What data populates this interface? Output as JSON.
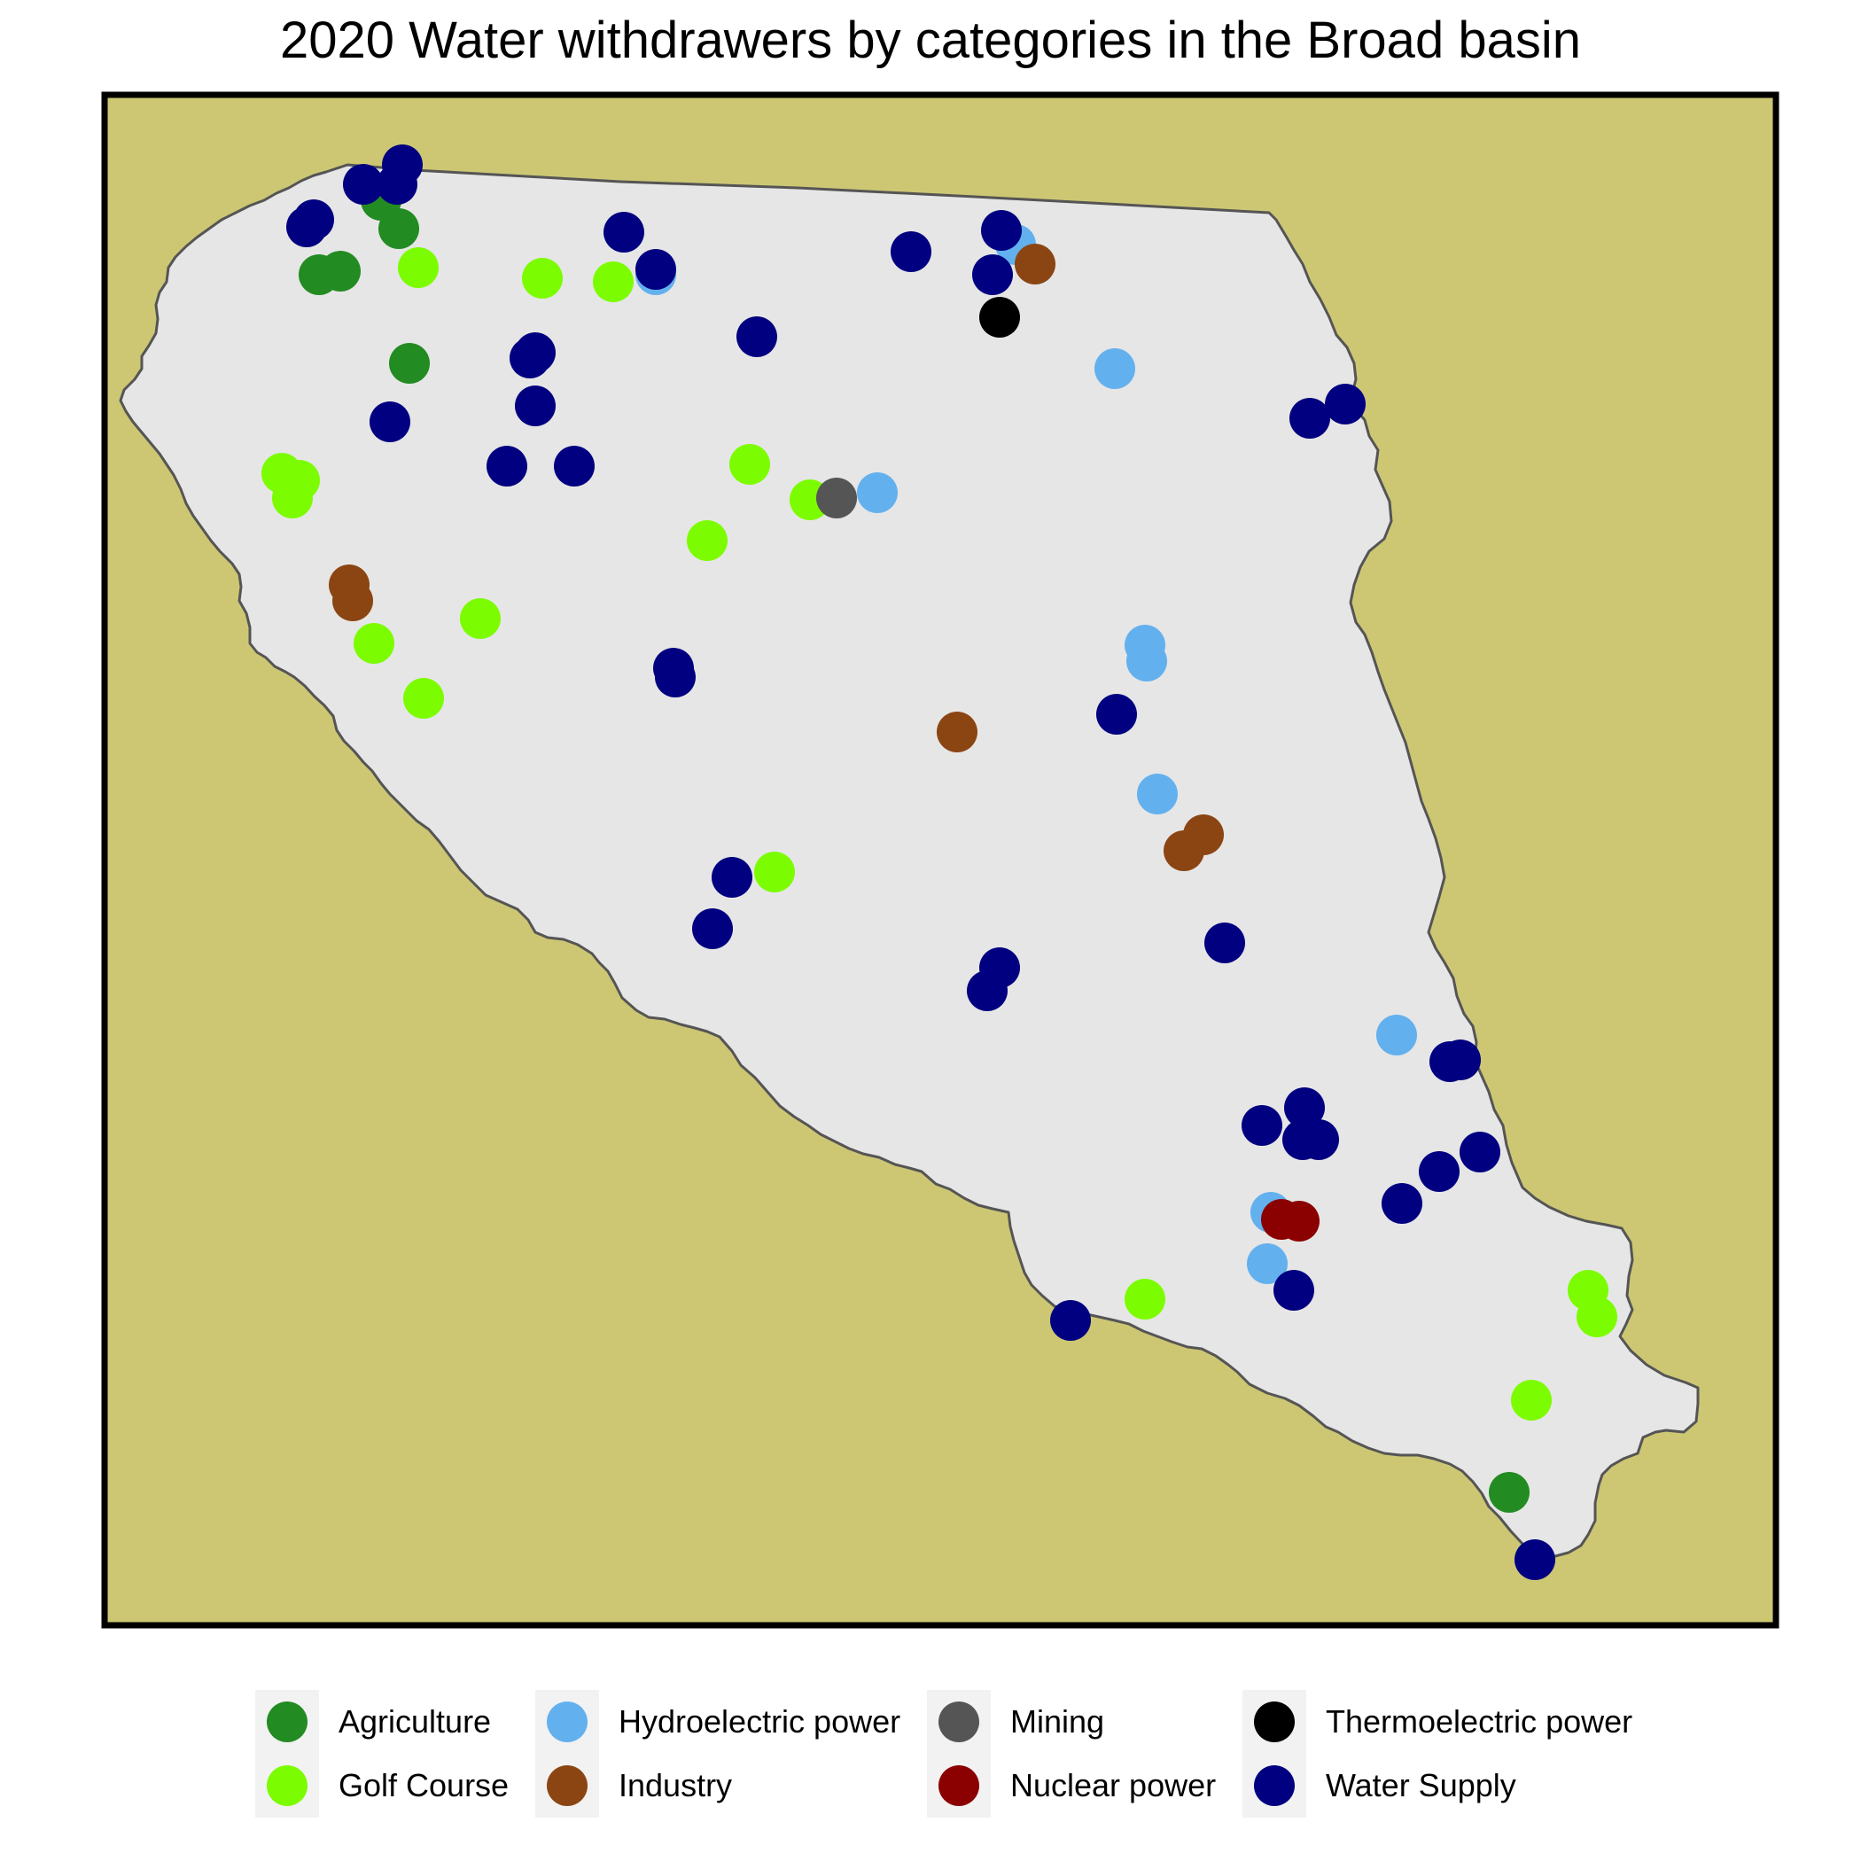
{
  "title": "2020 Water withdrawers by categories in the Broad basin",
  "colors": {
    "background": "#CDC774",
    "basin_fill": "#E6E6E6",
    "basin_outline": "#555555",
    "frame": "#000000"
  },
  "categories": [
    {
      "id": "agriculture",
      "label": "Agriculture",
      "color": "#228B22"
    },
    {
      "id": "golf",
      "label": "Golf Course",
      "color": "#7CFC00"
    },
    {
      "id": "hydro",
      "label": "Hydroelectric power",
      "color": "#63B0EE"
    },
    {
      "id": "industry",
      "label": "Industry",
      "color": "#8B4513"
    },
    {
      "id": "mining",
      "label": "Mining",
      "color": "#555555"
    },
    {
      "id": "nuclear",
      "label": "Nuclear power",
      "color": "#8B0000"
    },
    {
      "id": "thermo",
      "label": "Thermoelectric power",
      "color": "#000000"
    },
    {
      "id": "water",
      "label": "Water Supply",
      "color": "#000080"
    }
  ]
}
